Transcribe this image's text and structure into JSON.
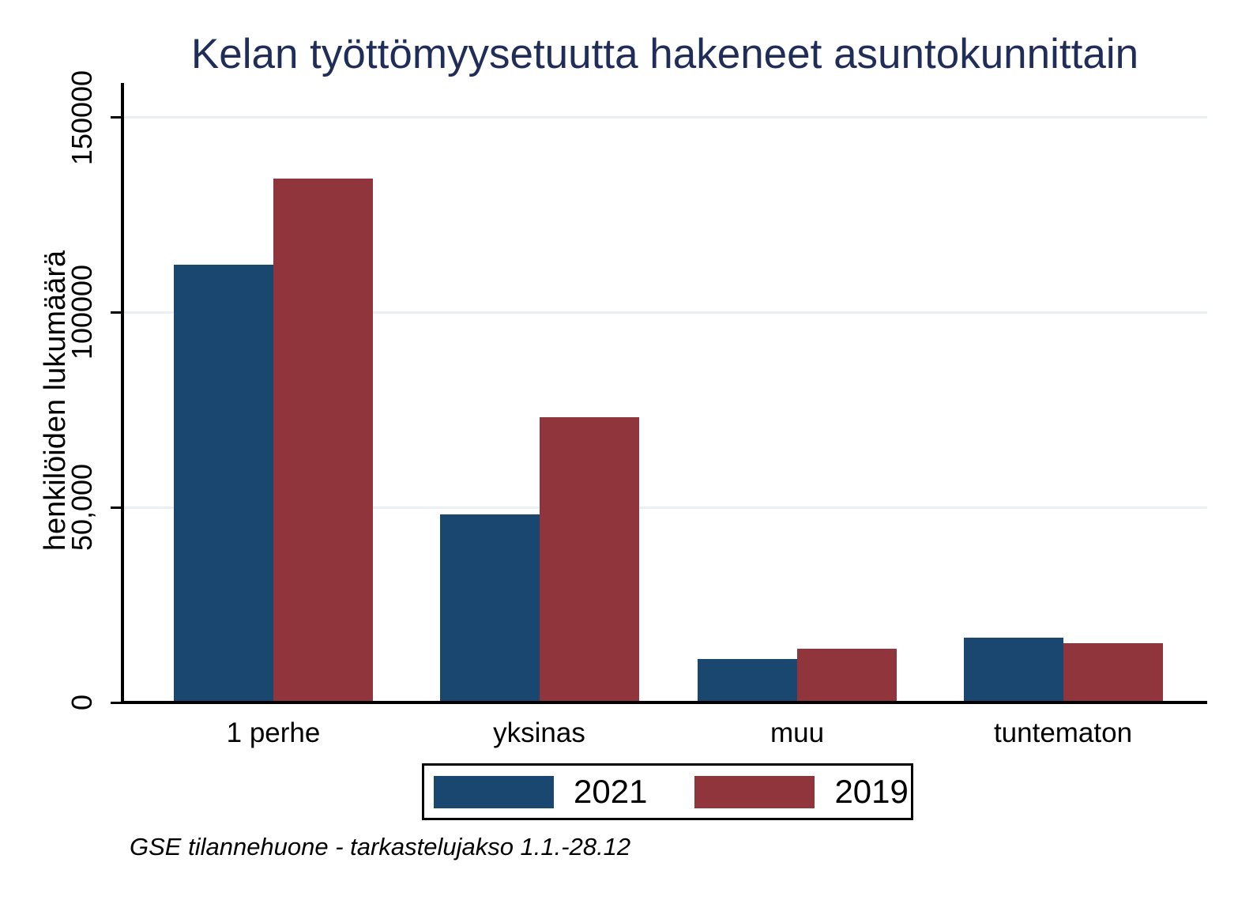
{
  "chart_data": {
    "type": "bar",
    "title": "Kelan työttömyysetuutta hakeneet asuntokunnittain",
    "ylabel": "henkilöiden lukumäärä",
    "xlabel": "",
    "categories": [
      "1 perhe",
      "yksinas",
      "muu",
      "tuntematon"
    ],
    "series": [
      {
        "name": "2021",
        "color": "#1A476F",
        "values": [
          112000,
          48000,
          11000,
          16500
        ]
      },
      {
        "name": "2019",
        "color": "#90353B",
        "values": [
          134000,
          73000,
          13500,
          15000
        ]
      }
    ],
    "y_ticks": [
      {
        "value": 0,
        "label": "0"
      },
      {
        "value": 50000,
        "label": "50,000"
      },
      {
        "value": 100000,
        "label": "100000"
      },
      {
        "value": 150000,
        "label": "150000"
      }
    ],
    "ylim": [
      0,
      158500
    ],
    "grid": true,
    "legend_position": "bottom-center",
    "note": "GSE tilannehuone - tarkastelujakso 1.1.-28.12",
    "colors": {
      "grid": "#E9F1F4",
      "axis": "#000000",
      "title": "#1F2D58",
      "background": "#FFFFFF"
    }
  }
}
